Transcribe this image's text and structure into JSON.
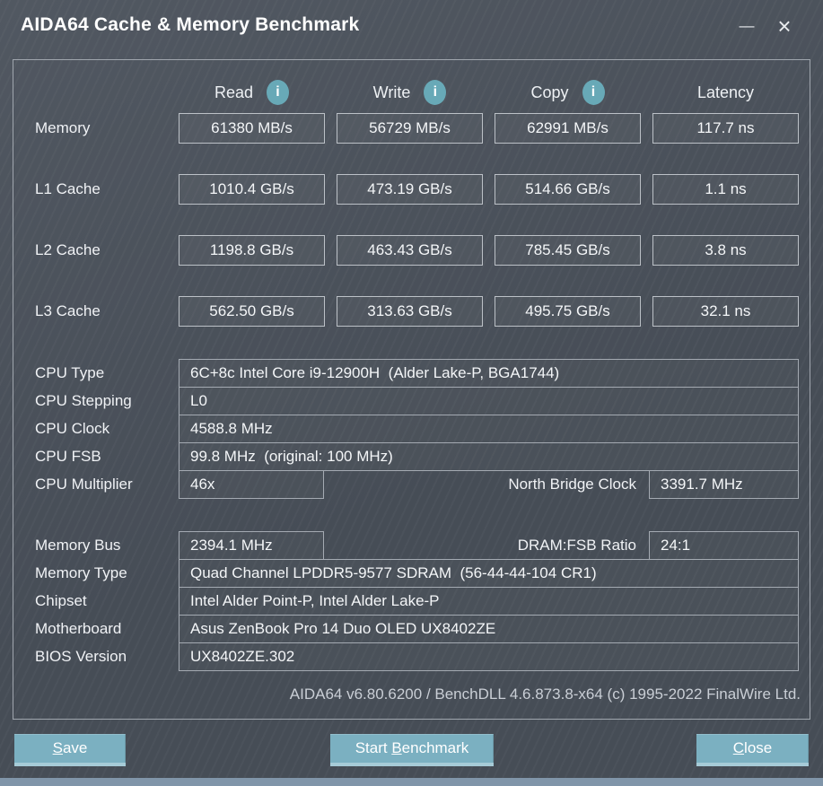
{
  "window": {
    "title": "AIDA64 Cache & Memory Benchmark",
    "minimize_glyph": "—",
    "close_glyph": "×"
  },
  "colors": {
    "accent_teal": "#68a9b7",
    "button_teal": "#7bb0c1",
    "button_bottom_edge": "#a6cbd7",
    "window_background": "#4a515b",
    "bottom_strip": "#8095a9"
  },
  "benchmark": {
    "columns": [
      {
        "label": "Read",
        "info_icon": "i"
      },
      {
        "label": "Write",
        "info_icon": "i"
      },
      {
        "label": "Copy",
        "info_icon": "i"
      },
      {
        "label": "Latency"
      }
    ],
    "rows": [
      {
        "label": "Memory",
        "read": "61380 MB/s",
        "write": "56729 MB/s",
        "copy": "62991 MB/s",
        "latency": "117.7 ns"
      },
      {
        "label": "L1 Cache",
        "read": "1010.4 GB/s",
        "write": "473.19 GB/s",
        "copy": "514.66 GB/s",
        "latency": "1.1 ns"
      },
      {
        "label": "L2 Cache",
        "read": "1198.8 GB/s",
        "write": "463.43 GB/s",
        "copy": "785.45 GB/s",
        "latency": "3.8 ns"
      },
      {
        "label": "L3 Cache",
        "read": "562.50 GB/s",
        "write": "313.63 GB/s",
        "copy": "495.75 GB/s",
        "latency": "32.1 ns"
      }
    ]
  },
  "system_info": {
    "cpu_type": {
      "label": "CPU Type",
      "value": "6C+8c Intel Core i9-12900H  (Alder Lake-P, BGA1744)"
    },
    "cpu_stepping": {
      "label": "CPU Stepping",
      "value": "L0"
    },
    "cpu_clock": {
      "label": "CPU Clock",
      "value": "4588.8 MHz"
    },
    "cpu_fsb": {
      "label": "CPU FSB",
      "value": "99.8 MHz  (original: 100 MHz)"
    },
    "cpu_multiplier": {
      "label": "CPU Multiplier",
      "value": "46x",
      "extra_label": "North Bridge Clock",
      "extra_value": "3391.7 MHz"
    },
    "memory_bus": {
      "label": "Memory Bus",
      "value": "2394.1 MHz",
      "extra_label": "DRAM:FSB Ratio",
      "extra_value": "24:1"
    },
    "memory_type": {
      "label": "Memory Type",
      "value": "Quad Channel LPDDR5-9577 SDRAM  (56-44-44-104 CR1)"
    },
    "chipset": {
      "label": "Chipset",
      "value": "Intel Alder Point-P, Intel Alder Lake-P"
    },
    "motherboard": {
      "label": "Motherboard",
      "value": "Asus ZenBook Pro 14 Duo OLED UX8402ZE"
    },
    "bios_version": {
      "label": "BIOS Version",
      "value": "UX8402ZE.302"
    }
  },
  "footer": {
    "credit": "AIDA64 v6.80.6200 / BenchDLL 4.6.873.8-x64  (c) 1995-2022 FinalWire Ltd."
  },
  "buttons": {
    "save": {
      "pre": "",
      "key": "S",
      "post": "ave"
    },
    "start": {
      "pre": "Start ",
      "key": "B",
      "post": "enchmark"
    },
    "close": {
      "pre": "",
      "key": "C",
      "post": "lose"
    }
  }
}
